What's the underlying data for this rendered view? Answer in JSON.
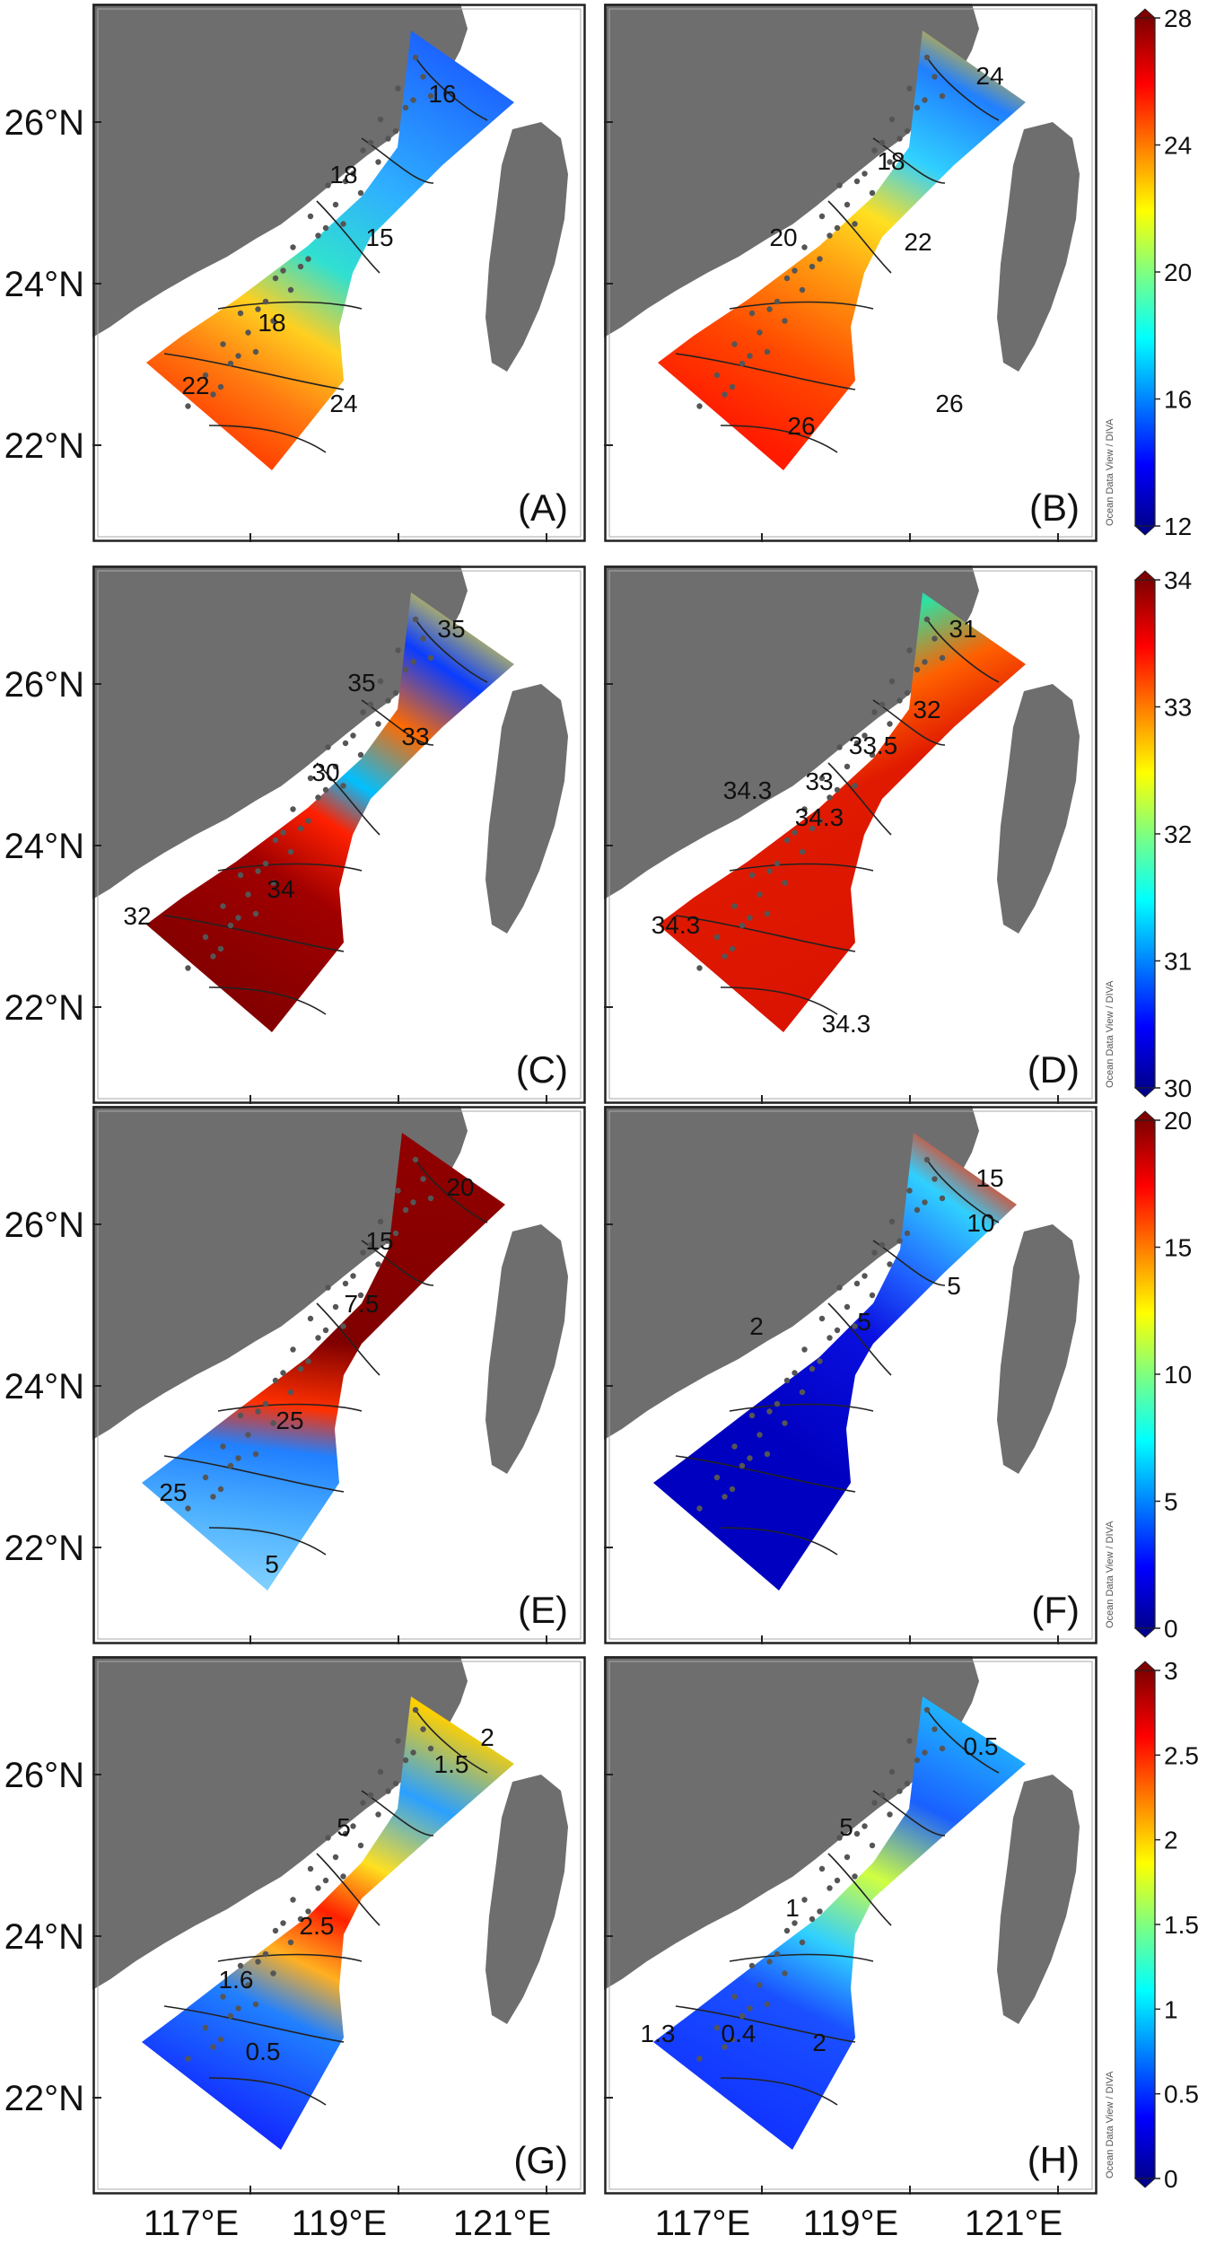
{
  "figure": {
    "lat_labels": [
      "26°N",
      "24°N",
      "22°N"
    ],
    "lon_labels": [
      "117°E",
      "119°E",
      "121°E"
    ],
    "credit": "Ocean Data View / DIVA",
    "panels": [
      {
        "label": "(A)",
        "contour_labels": [
          "16",
          "18",
          "15",
          "18",
          "22",
          "24"
        ]
      },
      {
        "label": "(B)",
        "contour_labels": [
          "24",
          "18",
          "22",
          "20",
          "26",
          "26"
        ]
      },
      {
        "label": "(C)",
        "contour_labels": [
          "35",
          "33",
          "30",
          "34",
          "32",
          "35"
        ]
      },
      {
        "label": "(D)",
        "contour_labels": [
          "31",
          "32",
          "34.3",
          "33.5",
          "33",
          "34.3",
          "34.3",
          "34.3"
        ]
      },
      {
        "label": "(E)",
        "contour_labels": [
          "20",
          "15",
          "7.5",
          "25",
          "25",
          "5"
        ]
      },
      {
        "label": "(F)",
        "contour_labels": [
          "15",
          "10",
          "5",
          "5",
          "2"
        ]
      },
      {
        "label": "(G)",
        "contour_labels": [
          "2",
          "1.5",
          "5",
          "2.5",
          "1.6",
          "0.5"
        ]
      },
      {
        "label": "(H)",
        "contour_labels": [
          "0.5",
          "5",
          "1",
          "0.4",
          "1.3",
          "2"
        ]
      }
    ],
    "colorbars": [
      {
        "ticks": [
          "28",
          "24",
          "20",
          "16",
          "12"
        ]
      },
      {
        "ticks": [
          "34",
          "33",
          "32",
          "31",
          "30"
        ]
      },
      {
        "ticks": [
          "20",
          "15",
          "10",
          "5",
          "0"
        ]
      },
      {
        "ticks": [
          "3",
          "2.5",
          "2",
          "1.5",
          "1",
          "0.5",
          "0"
        ]
      }
    ]
  }
}
